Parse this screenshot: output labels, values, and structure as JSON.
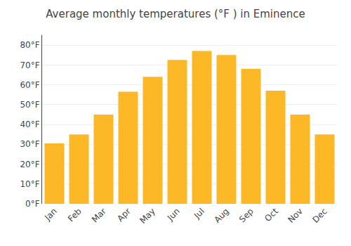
{
  "chart_data": {
    "type": "bar",
    "title": "Average monthly temperatures (°F ) in Eminence",
    "categories": [
      "Jan",
      "Feb",
      "Mar",
      "Apr",
      "May",
      "Jun",
      "Jul",
      "Aug",
      "Sep",
      "Oct",
      "Nov",
      "Dec"
    ],
    "values": [
      30.5,
      35.0,
      45.0,
      56.5,
      64.0,
      72.5,
      77.0,
      75.0,
      68.0,
      57.0,
      45.0,
      35.0
    ],
    "color": "#FDB827",
    "ylim": [
      0,
      85
    ],
    "yticks": [
      {
        "value": 0,
        "label": "0°F"
      },
      {
        "value": 10,
        "label": "10°F"
      },
      {
        "value": 20,
        "label": "20°F"
      },
      {
        "value": 30,
        "label": "30°F"
      },
      {
        "value": 40,
        "label": "40°F"
      },
      {
        "value": 50,
        "label": "50°F"
      },
      {
        "value": 60,
        "label": "60°F"
      },
      {
        "value": 70,
        "label": "70°F"
      },
      {
        "value": 80,
        "label": "80°F"
      }
    ],
    "grid": true
  }
}
